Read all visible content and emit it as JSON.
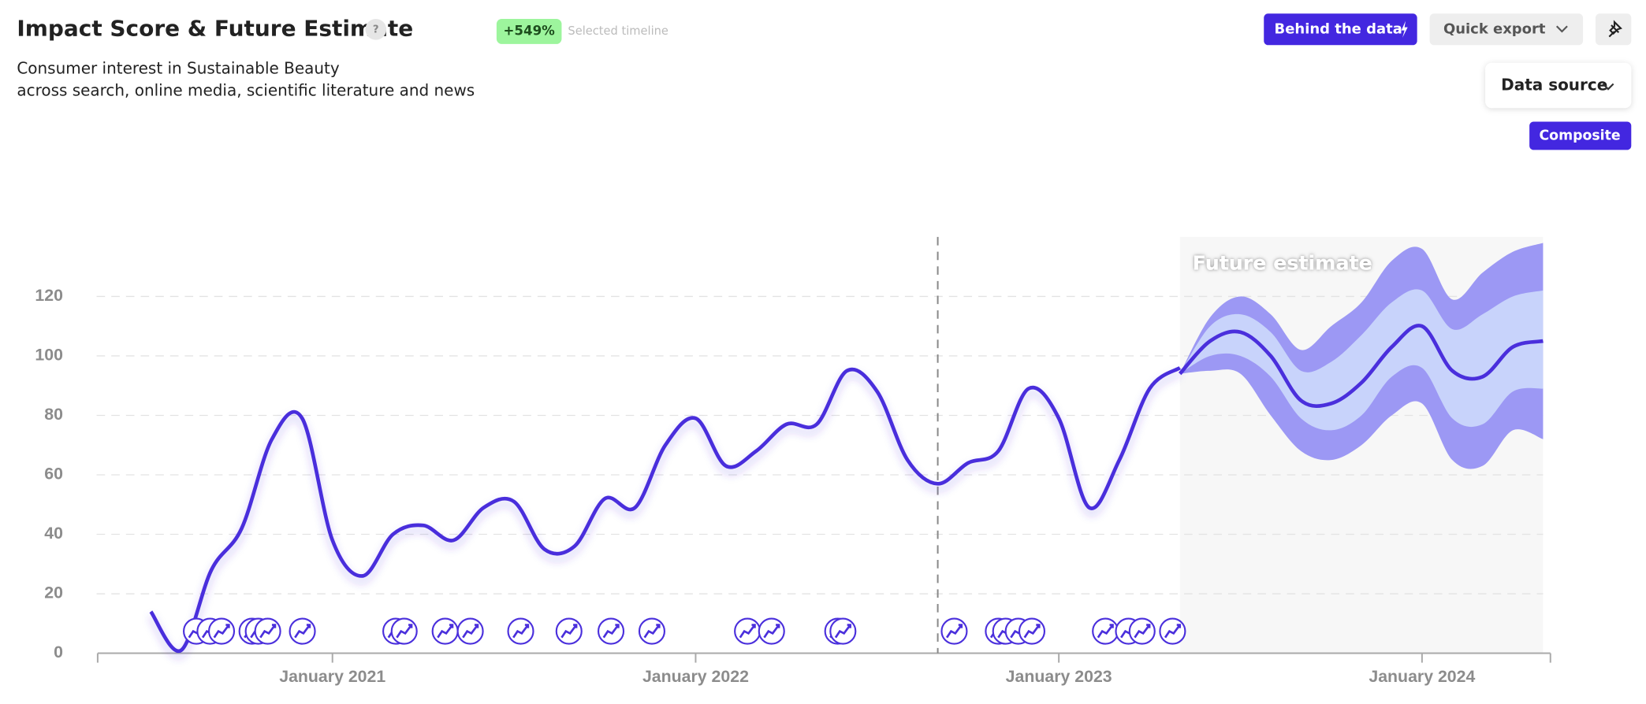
{
  "chart_data": {
    "type": "line",
    "title": "Impact Score & Future Estimate",
    "subtitle": [
      "Consumer interest in Sustainable Beauty",
      "across search, online media, scientific literature and news"
    ],
    "x": [
      "2020-07",
      "2020-08",
      "2020-09",
      "2020-10",
      "2020-11",
      "2020-12",
      "2021-01",
      "2021-02",
      "2021-03",
      "2021-04",
      "2021-05",
      "2021-06",
      "2021-07",
      "2021-08",
      "2021-09",
      "2021-10",
      "2021-11",
      "2021-12",
      "2022-01",
      "2022-02",
      "2022-03",
      "2022-04",
      "2022-05",
      "2022-06",
      "2022-07",
      "2022-08",
      "2022-09",
      "2022-10",
      "2022-11",
      "2022-12",
      "2023-01",
      "2023-02",
      "2023-03",
      "2023-04",
      "2023-05"
    ],
    "series": [
      {
        "color": "#4a2fdc",
        "values": [
          14,
          1,
          28,
          42,
          72,
          79,
          38,
          26,
          40,
          43,
          38,
          49,
          51,
          35,
          36,
          52,
          49,
          70,
          79,
          63,
          68,
          77,
          77,
          95,
          88,
          65,
          57,
          64,
          68,
          89,
          79,
          49,
          65,
          89,
          96
        ]
      }
    ],
    "forecast": {
      "label": "Future estimate",
      "color": "#4a2fdc",
      "inner_color": "#c8d3fb",
      "outer_color": "#9c98f4",
      "shade_color": "#f7f7f7",
      "x": [
        "2023-05",
        "2023-06",
        "2023-07",
        "2023-08",
        "2023-09",
        "2023-10",
        "2023-11",
        "2023-12",
        "2024-01",
        "2024-02",
        "2024-03",
        "2024-04",
        "2024-05"
      ],
      "values": [
        94,
        105,
        108,
        100,
        85,
        84,
        91,
        103,
        110,
        95,
        93,
        103,
        105
      ],
      "inner_upper": [
        94,
        110,
        114,
        108,
        95,
        98,
        107,
        118,
        122,
        109,
        114,
        120,
        122
      ],
      "inner_lower": [
        94,
        100,
        100,
        93,
        79,
        75,
        80,
        93,
        96,
        79,
        77,
        88,
        89
      ],
      "outer_upper": [
        94,
        113,
        120,
        114,
        102,
        110,
        118,
        132,
        136,
        119,
        128,
        135,
        138
      ],
      "outer_lower": [
        94,
        95,
        94,
        80,
        68,
        65,
        70,
        80,
        84,
        65,
        63,
        75,
        72
      ]
    },
    "marker_x": "2022-09",
    "xlim": [
      "2020-05",
      "2024-05"
    ],
    "xticks": [
      {
        "value": "2021-01",
        "label": "January 2021"
      },
      {
        "value": "2022-01",
        "label": "January 2022"
      },
      {
        "value": "2023-01",
        "label": "January 2023"
      },
      {
        "value": "2024-01",
        "label": "January 2024"
      }
    ],
    "ylim": [
      0,
      140
    ],
    "yticks": [
      0,
      20,
      40,
      60,
      80,
      100,
      120
    ],
    "grid": true
  },
  "ui": {
    "help": "?",
    "change": "+549%",
    "change_note": "Selected timeline",
    "behind": "Behind the data",
    "export": "Quick export",
    "source": "Data source",
    "composite": "Composite"
  }
}
